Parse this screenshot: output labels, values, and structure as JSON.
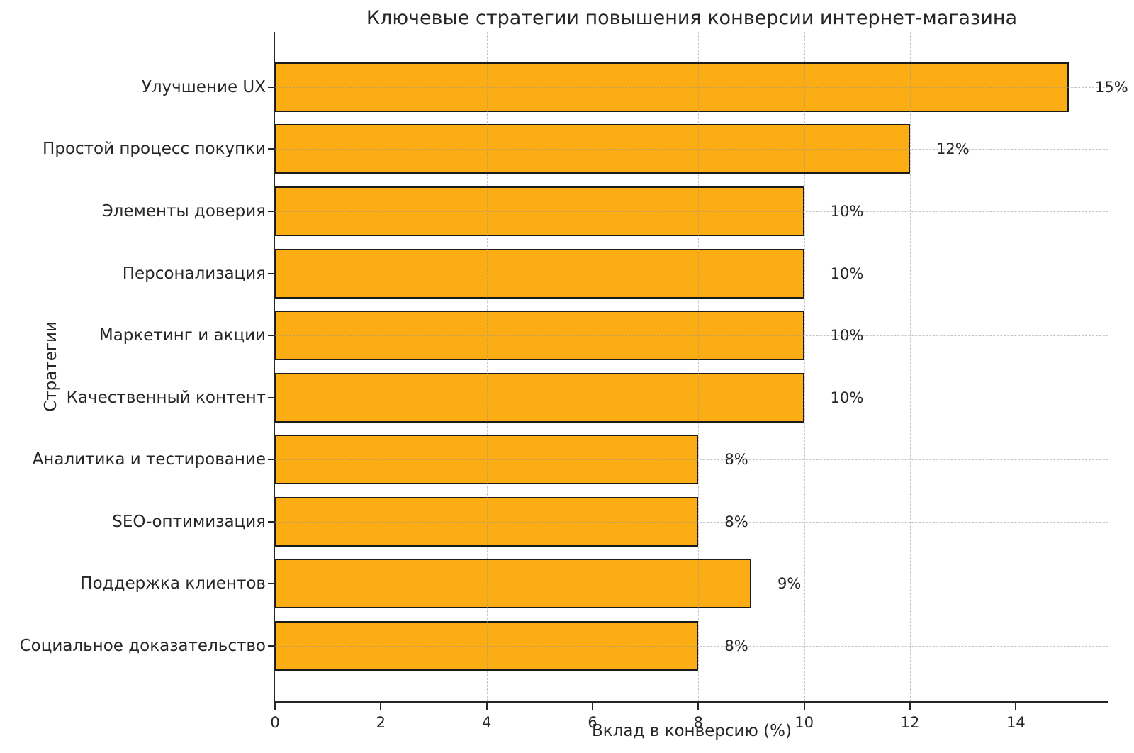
{
  "chart_data": {
    "type": "bar",
    "orientation": "horizontal",
    "title": "Ключевые стратегии повышения конверсии интернет-магазина",
    "xlabel": "Вклад в конверсию (%)",
    "ylabel": "Стратегии",
    "categories": [
      "Улучшение UX",
      "Простой процесс покупки",
      "Элементы доверия",
      "Персонализация",
      "Маркетинг и акции",
      "Качественный контент",
      "Аналитика и тестирование",
      "SEO-оптимизация",
      "Поддержка клиентов",
      "Социальное доказательство"
    ],
    "values": [
      15,
      12,
      10,
      10,
      10,
      10,
      8,
      8,
      9,
      8
    ],
    "value_labels": [
      "15%",
      "12%",
      "10%",
      "10%",
      "10%",
      "10%",
      "8%",
      "8%",
      "9%",
      "8%"
    ],
    "xlim": [
      0,
      15.75
    ],
    "xticks": [
      0,
      2,
      4,
      6,
      8,
      10,
      12,
      14
    ],
    "grid": true,
    "legend": "none",
    "bar_color": "#FCAD13",
    "bar_edge_color": "#1A1A1A",
    "grid_color": "#969696",
    "text_color": "#262626"
  }
}
